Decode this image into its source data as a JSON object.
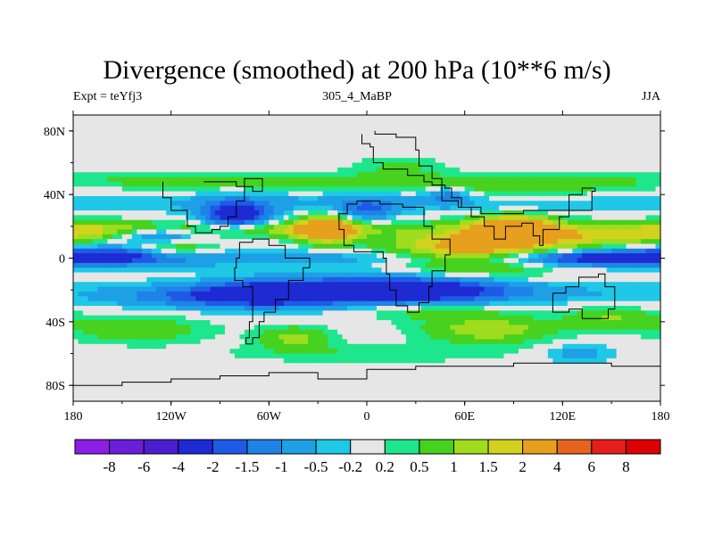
{
  "title": "Divergence (smoothed) at 200 hPa (10**6 m/s)",
  "subtitle_left": "Expt = teYfj3",
  "subtitle_center": "305_4_MaBP",
  "subtitle_right": "JJA",
  "chart_data": {
    "type": "heatmap",
    "variable": "Divergence (smoothed)",
    "level": "200 hPa",
    "units": "10**6 m/s",
    "experiment": "teYfj3",
    "run": "305_4_MaBP",
    "season": "JJA",
    "x_range": [
      -180,
      180
    ],
    "y_range": [
      -90,
      90
    ],
    "x_ticks": [
      {
        "value": -180,
        "label": "180"
      },
      {
        "value": -120,
        "label": "120W"
      },
      {
        "value": -60,
        "label": "60W"
      },
      {
        "value": 0,
        "label": "0"
      },
      {
        "value": 60,
        "label": "60E"
      },
      {
        "value": 120,
        "label": "120E"
      },
      {
        "value": 180,
        "label": "180"
      }
    ],
    "y_ticks": [
      {
        "value": 80,
        "label": "80N"
      },
      {
        "value": 40,
        "label": "40N"
      },
      {
        "value": 0,
        "label": "0"
      },
      {
        "value": -40,
        "label": "40S"
      },
      {
        "value": -80,
        "label": "80S"
      }
    ],
    "contour_levels": [
      -8,
      -6,
      -4,
      -2,
      -1.5,
      -1,
      -0.5,
      -0.2,
      0.2,
      0.5,
      1,
      1.5,
      2,
      4,
      6,
      8
    ],
    "colorbar_labels": [
      "-8",
      "-6",
      "-4",
      "-2",
      "-1.5",
      "-1",
      "-0.5",
      "-0.2",
      "0.2",
      "0.5",
      "1",
      "1.5",
      "2",
      "4",
      "6",
      "8"
    ],
    "colors": [
      "#8c1ee6",
      "#6a1ed8",
      "#4a1ecf",
      "#1e2ad2",
      "#1e5ae6",
      "#1e82e6",
      "#1ea0e6",
      "#1ec8e6",
      "#e6e6e6",
      "#1ee68c",
      "#46d21e",
      "#a0dc1e",
      "#d2d21e",
      "#e6a01e",
      "#e6641e",
      "#e61e1e",
      "#dc0000"
    ],
    "features": [
      {
        "lon": -60,
        "lat": 18,
        "sx": 60,
        "sy": 3.5,
        "amp": 1.2
      },
      {
        "lon": -150,
        "lat": 18,
        "sx": 30,
        "sy": 4,
        "amp": 1.2
      },
      {
        "lon": 150,
        "lat": 15,
        "sx": 40,
        "sy": 5,
        "amp": 1.6
      },
      {
        "lon": -118,
        "lat": 5,
        "sx": 20,
        "sy": 4,
        "amp": 1.6
      },
      {
        "lon": -25,
        "lat": 18,
        "sx": 13,
        "sy": 6,
        "amp": 3.0
      },
      {
        "lon": 70,
        "lat": 5,
        "sx": 38,
        "sy": 9,
        "amp": 3.0
      },
      {
        "lon": 90,
        "lat": 20,
        "sx": 18,
        "sy": 5,
        "amp": 2.8
      },
      {
        "lon": 0,
        "lat": 0,
        "sx": 180,
        "sy": 4,
        "amp": -0.8
      },
      {
        "lon": -150,
        "lat": 2,
        "sx": 35,
        "sy": 4,
        "amp": -1.8
      },
      {
        "lon": 130,
        "lat": 0,
        "sx": 50,
        "sy": 3.5,
        "amp": -2.2
      },
      {
        "lon": 20,
        "lat": -20,
        "sx": 45,
        "sy": 6,
        "amp": -3.0
      },
      {
        "lon": -60,
        "lat": -22,
        "sx": 30,
        "sy": 6,
        "amp": -2.0
      },
      {
        "lon": -80,
        "lat": 27,
        "sx": 14,
        "sy": 6,
        "amp": -2.8
      },
      {
        "lon": -130,
        "lat": 15,
        "sx": 20,
        "sy": 4,
        "amp": -2.0
      },
      {
        "lon": 0,
        "lat": 30,
        "sx": 12,
        "sy": 5,
        "amp": -1.4
      },
      {
        "lon": 40,
        "lat": -33,
        "sx": 30,
        "sy": 4,
        "amp": 0.8
      },
      {
        "lon": 0,
        "lat": -22,
        "sx": 180,
        "sy": 5,
        "amp": -0.6
      },
      {
        "lon": 75,
        "lat": -45,
        "sx": 28,
        "sy": 6,
        "amp": 1.4
      },
      {
        "lon": -45,
        "lat": -50,
        "sx": 15,
        "sy": 5,
        "amp": 1.2
      },
      {
        "lon": -140,
        "lat": -45,
        "sx": 30,
        "sy": 6,
        "amp": 0.9
      },
      {
        "lon": 150,
        "lat": -38,
        "sx": 20,
        "sy": 5,
        "amp": 1.0
      },
      {
        "lon": 130,
        "lat": -60,
        "sx": 15,
        "sy": 4,
        "amp": -0.8
      },
      {
        "lon": 0,
        "lat": 48,
        "sx": 180,
        "sy": 4,
        "amp": 0.8
      },
      {
        "lon": 50,
        "lat": 40,
        "sx": 8,
        "sy": 4,
        "amp": -1.0
      },
      {
        "lon": 100,
        "lat": 42,
        "sx": 30,
        "sy": 4,
        "amp": 0.7
      },
      {
        "lon": 20,
        "lat": 58,
        "sx": 18,
        "sy": 4,
        "amp": 0.6
      },
      {
        "lon": 0,
        "lat": 35,
        "sx": 180,
        "sy": 5,
        "amp": -0.6
      },
      {
        "lon": 0,
        "lat": -60,
        "sx": 60,
        "sy": 4,
        "amp": 0.5
      },
      {
        "lon": -100,
        "lat": -25,
        "sx": 40,
        "sy": 5,
        "amp": -1.0
      }
    ]
  }
}
